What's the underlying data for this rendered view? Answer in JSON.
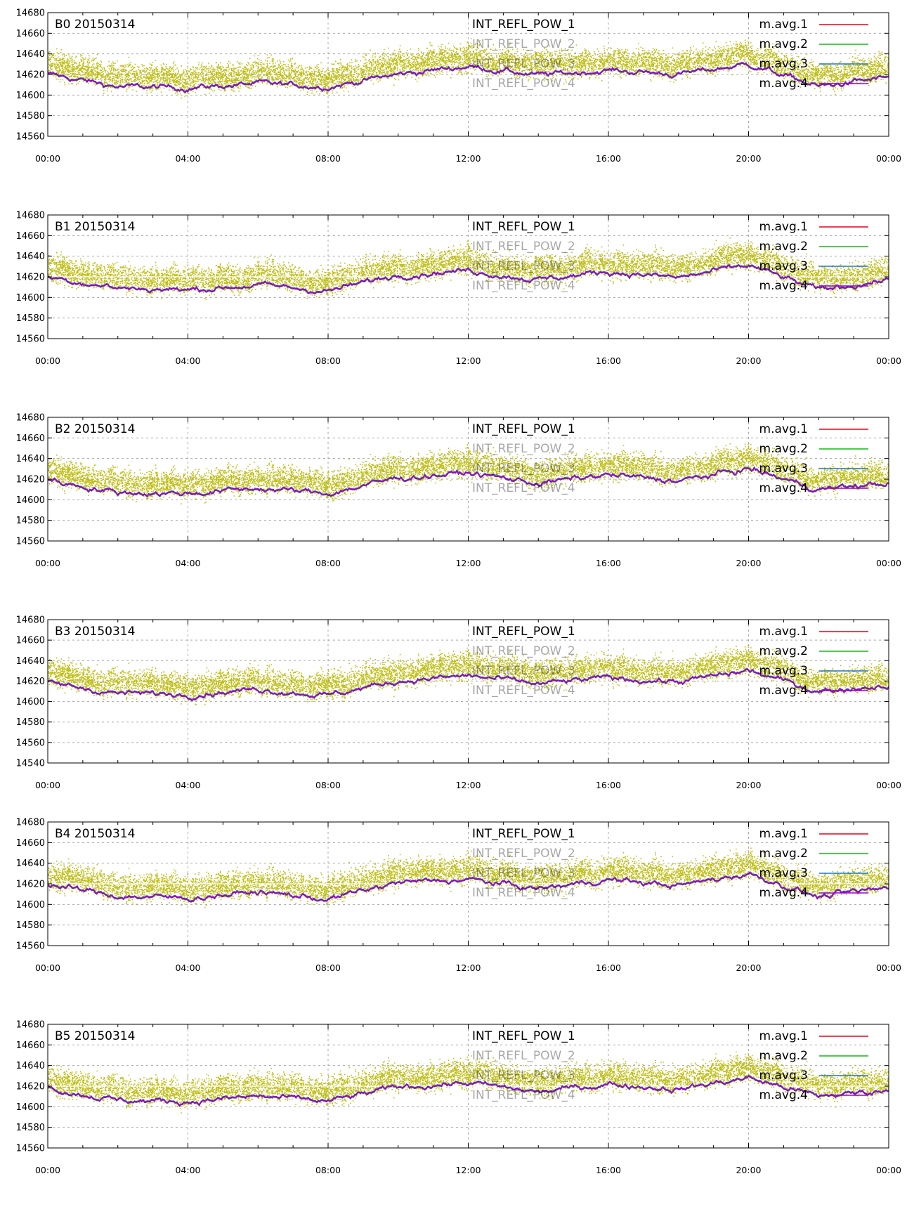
{
  "colors": {
    "scatter": "#b8b800",
    "avg1": "#e8001a",
    "avg2": "#14b814",
    "avg3": "#1f78c8",
    "avg4": "#9a00d0",
    "grid": "#a8a8a8",
    "axis": "#000000",
    "ref_line": "#ffffff"
  },
  "x_ticks": [
    "00:00",
    "04:00",
    "08:00",
    "12:00",
    "16:00",
    "20:00",
    "00:00"
  ],
  "scatter_legend": [
    "INT_REFL_POW_1",
    "INT_REFL_POW_2",
    "INT_REFL_POW_3",
    "INT_REFL_POW_4"
  ],
  "avg_legend": [
    "m.avg.1",
    "m.avg.2",
    "m.avg.3",
    "m.avg.4"
  ],
  "chart_data": [
    {
      "type": "scatter",
      "title": "B0 20150314",
      "xlabel": "",
      "ylabel": "",
      "ylim": [
        14560,
        14680
      ],
      "yticks": [
        "14680",
        "14660",
        "14640",
        "14620",
        "14600",
        "14580",
        "14560"
      ],
      "grid": true,
      "reference_line": null,
      "legend_position": "top-right",
      "x": [
        "00:00",
        "02:00",
        "04:00",
        "06:00",
        "08:00",
        "10:00",
        "12:00",
        "14:00",
        "16:00",
        "18:00",
        "20:00",
        "22:00",
        "24:00"
      ],
      "series": [
        {
          "name": "m.avg.1",
          "values": [
            14620,
            14608,
            14607,
            14611,
            14608,
            14620,
            14628,
            14619,
            14624,
            14620,
            14630,
            14608,
            14617
          ]
        }
      ]
    },
    {
      "type": "scatter",
      "title": "B1 20150314",
      "xlabel": "",
      "ylabel": "",
      "ylim": [
        14560,
        14680
      ],
      "yticks": [
        "14680",
        "14660",
        "14640",
        "14620",
        "14600",
        "14580",
        "14560"
      ],
      "grid": true,
      "reference_line": 14620,
      "legend_position": "top-right",
      "x": [
        "00:00",
        "02:00",
        "04:00",
        "06:00",
        "08:00",
        "10:00",
        "12:00",
        "14:00",
        "16:00",
        "18:00",
        "20:00",
        "22:00",
        "24:00"
      ],
      "series": [
        {
          "name": "m.avg.1",
          "values": [
            14620,
            14609,
            14607,
            14612,
            14606,
            14622,
            14626,
            14617,
            14625,
            14619,
            14631,
            14607,
            14617
          ]
        }
      ]
    },
    {
      "type": "scatter",
      "title": "B2 20150314",
      "xlabel": "",
      "ylabel": "",
      "ylim": [
        14560,
        14680
      ],
      "yticks": [
        "14680",
        "14660",
        "14640",
        "14620",
        "14600",
        "14580",
        "14560"
      ],
      "grid": true,
      "reference_line": null,
      "legend_position": "top-right",
      "x": [
        "00:00",
        "02:00",
        "04:00",
        "06:00",
        "08:00",
        "10:00",
        "12:00",
        "14:00",
        "16:00",
        "18:00",
        "20:00",
        "22:00",
        "24:00"
      ],
      "series": [
        {
          "name": "m.avg.1",
          "values": [
            14619,
            14607,
            14606,
            14611,
            14606,
            14621,
            14626,
            14616,
            14624,
            14618,
            14630,
            14610,
            14616
          ]
        }
      ]
    },
    {
      "type": "scatter",
      "title": "B3 20150314",
      "xlabel": "",
      "ylabel": "",
      "ylim": [
        14540,
        14680
      ],
      "yticks": [
        "14680",
        "14660",
        "14640",
        "14620",
        "14600",
        "14580",
        "14560",
        "14540"
      ],
      "grid": true,
      "reference_line": null,
      "legend_position": "top-right",
      "x": [
        "00:00",
        "02:00",
        "04:00",
        "06:00",
        "08:00",
        "10:00",
        "12:00",
        "14:00",
        "16:00",
        "18:00",
        "20:00",
        "22:00",
        "24:00"
      ],
      "series": [
        {
          "name": "m.avg.1",
          "values": [
            14618,
            14608,
            14607,
            14612,
            14606,
            14620,
            14625,
            14617,
            14623,
            14619,
            14630,
            14610,
            14616
          ]
        }
      ]
    },
    {
      "type": "scatter",
      "title": "B4 20150314",
      "xlabel": "",
      "ylabel": "",
      "ylim": [
        14560,
        14680
      ],
      "yticks": [
        "14680",
        "14660",
        "14640",
        "14620",
        "14600",
        "14580",
        "14560"
      ],
      "grid": true,
      "reference_line": 14620,
      "legend_position": "top-right",
      "x": [
        "00:00",
        "02:00",
        "04:00",
        "06:00",
        "08:00",
        "10:00",
        "12:00",
        "14:00",
        "16:00",
        "18:00",
        "20:00",
        "22:00",
        "24:00"
      ],
      "series": [
        {
          "name": "m.avg.1",
          "values": [
            14619,
            14608,
            14606,
            14612,
            14605,
            14621,
            14624,
            14615,
            14624,
            14618,
            14630,
            14607,
            14616
          ]
        }
      ]
    },
    {
      "type": "scatter",
      "title": "B5 20150314",
      "xlabel": "",
      "ylabel": "",
      "ylim": [
        14560,
        14680
      ],
      "yticks": [
        "14680",
        "14660",
        "14640",
        "14620",
        "14600",
        "14580",
        "14560"
      ],
      "grid": true,
      "reference_line": 14620,
      "legend_position": "top-right",
      "x": [
        "00:00",
        "02:00",
        "04:00",
        "06:00",
        "08:00",
        "10:00",
        "12:00",
        "14:00",
        "16:00",
        "18:00",
        "20:00",
        "22:00",
        "24:00"
      ],
      "series": [
        {
          "name": "m.avg.1",
          "values": [
            14618,
            14606,
            14605,
            14610,
            14605,
            14619,
            14623,
            14614,
            14622,
            14617,
            14628,
            14610,
            14616
          ]
        }
      ]
    }
  ]
}
